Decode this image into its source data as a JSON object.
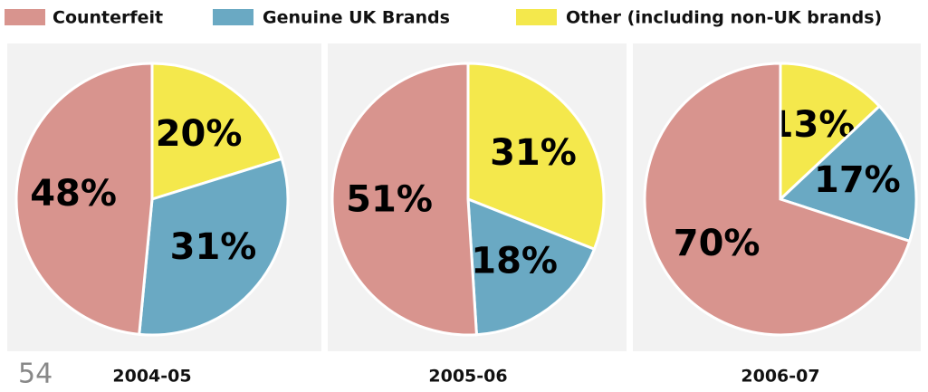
{
  "chart_data": [
    {
      "type": "pie",
      "title": "2004-05",
      "categories": [
        "Counterfeit",
        "Genuine UK Brands",
        "Other (including non-UK brands)"
      ],
      "values": [
        48,
        31,
        20
      ],
      "value_labels": [
        "48%",
        "31%",
        "20%"
      ],
      "colors": [
        "#d8948e",
        "#6aa9c3",
        "#f4e84c"
      ]
    },
    {
      "type": "pie",
      "title": "2005-06",
      "categories": [
        "Counterfeit",
        "Genuine UK Brands",
        "Other (including non-UK brands)"
      ],
      "values": [
        51,
        18,
        31
      ],
      "value_labels": [
        "51%",
        "18%",
        "31%"
      ],
      "colors": [
        "#d8948e",
        "#6aa9c3",
        "#f4e84c"
      ]
    },
    {
      "type": "pie",
      "title": "2006-07",
      "categories": [
        "Counterfeit",
        "Genuine UK Brands",
        "Other (including non-UK brands)"
      ],
      "values": [
        70,
        17,
        13
      ],
      "value_labels": [
        "70%",
        "17%",
        "13%"
      ],
      "colors": [
        "#d8948e",
        "#6aa9c3",
        "#f4e84c"
      ]
    }
  ],
  "page_number": "54"
}
